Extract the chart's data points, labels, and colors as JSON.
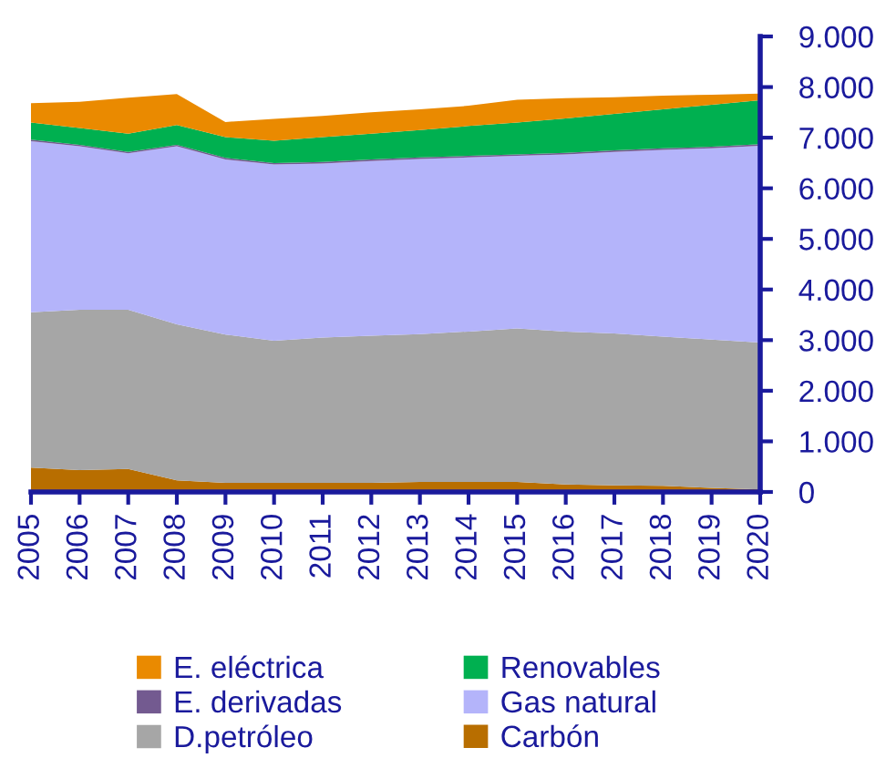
{
  "chart_data": {
    "type": "area",
    "stacked": true,
    "categories": [
      "2005",
      "2006",
      "2007",
      "2008",
      "2009",
      "2010",
      "2011",
      "2012",
      "2013",
      "2014",
      "2015",
      "2016",
      "2017",
      "2018",
      "2019",
      "2020"
    ],
    "series": [
      {
        "name": "Carbón",
        "color": "#b86e00",
        "values": [
          480,
          430,
          455,
          230,
          180,
          180,
          180,
          180,
          200,
          200,
          200,
          150,
          130,
          120,
          80,
          50
        ]
      },
      {
        "name": "D.petróleo",
        "color": "#a6a6a6",
        "values": [
          3070,
          3170,
          3145,
          3080,
          2930,
          2810,
          2870,
          2905,
          2920,
          2970,
          3030,
          3020,
          3000,
          2950,
          2930,
          2900
        ]
      },
      {
        "name": "Gas natural",
        "color": "#b4b4fa",
        "values": [
          3380,
          3230,
          3090,
          3520,
          3460,
          3480,
          3440,
          3455,
          3460,
          3440,
          3410,
          3500,
          3590,
          3690,
          3780,
          3890
        ]
      },
      {
        "name": "E. derivadas",
        "color": "#735a90",
        "values": [
          30,
          30,
          30,
          30,
          30,
          30,
          30,
          30,
          30,
          30,
          30,
          30,
          30,
          30,
          30,
          30
        ]
      },
      {
        "name": "Renovables",
        "color": "#00b050",
        "values": [
          340,
          330,
          360,
          390,
          410,
          440,
          490,
          510,
          540,
          590,
          630,
          680,
          720,
          770,
          830,
          870
        ]
      },
      {
        "name": "E. eléctrica",
        "color": "#ea8a00",
        "values": [
          380,
          520,
          710,
          610,
          300,
          430,
          420,
          420,
          410,
          400,
          450,
          400,
          330,
          270,
          200,
          130
        ]
      }
    ],
    "ylim": [
      0,
      9000
    ],
    "yticks": [
      {
        "value": 0,
        "label": "0"
      },
      {
        "value": 1000,
        "label": "1.000"
      },
      {
        "value": 2000,
        "label": "2.000"
      },
      {
        "value": 3000,
        "label": "3.000"
      },
      {
        "value": 4000,
        "label": "4.000"
      },
      {
        "value": 5000,
        "label": "5.000"
      },
      {
        "value": 6000,
        "label": "6.000"
      },
      {
        "value": 7000,
        "label": "7.000"
      },
      {
        "value": 8000,
        "label": "8.000"
      },
      {
        "value": 9000,
        "label": "9.000"
      }
    ],
    "grid": false,
    "legend": "bottom"
  }
}
